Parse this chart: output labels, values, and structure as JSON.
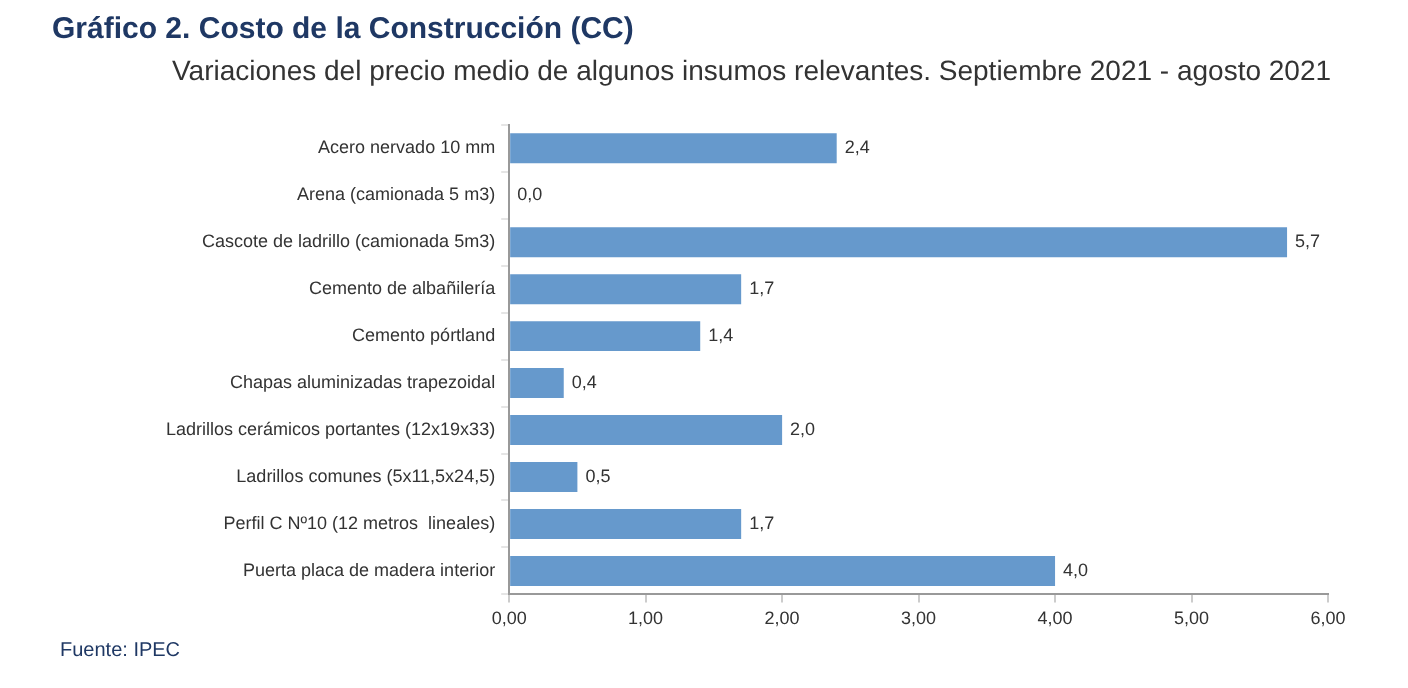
{
  "chart_data": {
    "type": "bar",
    "orientation": "horizontal",
    "title": "Gráfico 2. Costo de la Construcción (CC)",
    "subtitle": "Variaciones del precio medio de algunos insumos relevantes. Septiembre 2021 - agosto 2021",
    "categories": [
      "Acero nervado 10 mm",
      "Arena (camionada 5 m3)",
      "Cascote de ladrillo (camionada 5m3)",
      "Cemento de albañilería",
      "Cemento pórtland",
      "Chapas aluminizadas trapezoidal",
      "Ladrillos cerámicos portantes (12x19x33)",
      "Ladrillos comunes (5x11,5x24,5)",
      "Perfil C Nº10 (12 metros  lineales)",
      "Puerta placa de madera interior"
    ],
    "values": [
      2.4,
      0.0,
      5.7,
      1.7,
      1.4,
      0.4,
      2.0,
      0.5,
      1.7,
      4.0
    ],
    "value_labels": [
      "2,4",
      "0,0",
      "5,7",
      "1,7",
      "1,4",
      "0,4",
      "2,0",
      "0,5",
      "1,7",
      "4,0"
    ],
    "color": "#6699cc",
    "xlim": [
      0,
      6
    ],
    "xticks": [
      {
        "value": 0,
        "label": "0,00"
      },
      {
        "value": 1,
        "label": "1,00"
      },
      {
        "value": 2,
        "label": "2,00"
      },
      {
        "value": 3,
        "label": "3,00"
      },
      {
        "value": 4,
        "label": "4,00"
      },
      {
        "value": 5,
        "label": "5,00"
      },
      {
        "value": 6,
        "label": "6,00"
      }
    ],
    "grid": false,
    "legend": false,
    "annotations": [
      "Fuente: IPEC"
    ]
  }
}
